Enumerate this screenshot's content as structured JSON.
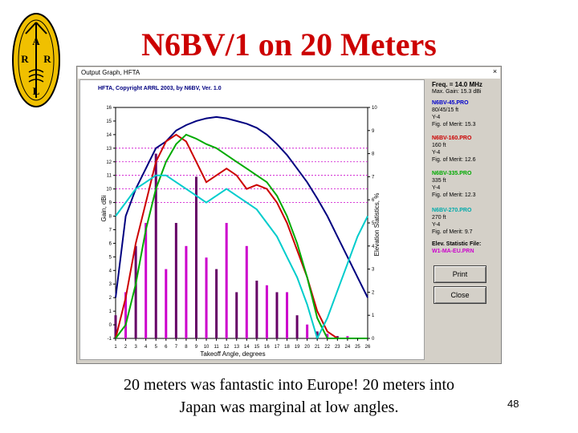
{
  "slide": {
    "title": "N6BV/1 on 20 Meters",
    "caption_line1": "20 meters was fantastic into Europe! 20 meters into",
    "caption_line2": "Japan was marginal at low angles.",
    "number": "48",
    "logo_letters": [
      "A",
      "R",
      "R",
      "L"
    ]
  },
  "window": {
    "title": "Output Graph, HFTA",
    "close_label": "×"
  },
  "chart_data": {
    "type": "line",
    "title": "HFTA, Copyright ARRL 2003, by N6BV, Ver. 1.0",
    "xlabel": "Takeoff Angle, degrees",
    "ylabel": "Gain, dBi",
    "y2label": "Elevation Statistics, %",
    "x": [
      1,
      2,
      3,
      4,
      5,
      6,
      7,
      8,
      9,
      10,
      11,
      12,
      13,
      14,
      15,
      16,
      17,
      18,
      19,
      20,
      21,
      22,
      23,
      24,
      25,
      26
    ],
    "xlim": [
      1,
      26
    ],
    "ylim": [
      -1,
      16
    ],
    "y2lim": [
      0,
      10
    ],
    "grid": "dotted horizontal reference lines",
    "series": [
      {
        "name": "N6BV-45.PRO",
        "color": "#000080",
        "values": [
          2,
          8,
          10,
          11.5,
          13,
          13.5,
          14.3,
          14.7,
          15,
          15.2,
          15.3,
          15.2,
          15,
          14.8,
          14.5,
          14,
          13.3,
          12.5,
          11.5,
          10.5,
          9.3,
          8,
          6.5,
          5,
          3.5,
          2
        ]
      },
      {
        "name": "N6BV-160.PRO",
        "color": "#cc0000",
        "values": [
          -1,
          2,
          6,
          9,
          12,
          13.5,
          14,
          13.5,
          12,
          10.5,
          11,
          11.5,
          11,
          10,
          10.3,
          10,
          9,
          7.5,
          5.5,
          3.5,
          1,
          -0.5,
          -1,
          -1,
          -1,
          -1
        ]
      },
      {
        "name": "N6BV-335.PRO",
        "color": "#00aa00",
        "values": [
          -1,
          0,
          3,
          7,
          10,
          12,
          13.3,
          14,
          13.7,
          13.3,
          13,
          12.5,
          12,
          11.5,
          11,
          10.5,
          9.5,
          8,
          6,
          3.5,
          0.5,
          -1,
          -1,
          -1,
          -1,
          -1
        ]
      },
      {
        "name": "N6BV-270.PRO",
        "color": "#00cccc",
        "values": [
          8,
          9,
          10,
          10.5,
          11,
          11,
          10.5,
          10,
          9.5,
          9,
          9.5,
          10,
          9.5,
          9,
          8.5,
          7.5,
          6.5,
          5,
          3.5,
          1.5,
          -1,
          0.5,
          2.5,
          4.5,
          6.5,
          8
        ]
      }
    ],
    "statistics": {
      "name": "W1-MA-EU.PRN",
      "unit": "%",
      "values": [
        1,
        2,
        4,
        5,
        8,
        3,
        5,
        4,
        7,
        3.5,
        3,
        5,
        2,
        4,
        2.5,
        2.3,
        2,
        2,
        1,
        0.6,
        0.3,
        0.2,
        0.1,
        0.1,
        0,
        0
      ],
      "colors": [
        "#660066",
        "#cc00cc"
      ]
    }
  },
  "side_panel": {
    "freq_label": "Freq. = 14.0 MHz",
    "max_gain_label": "Max. Gain: 15.3 dBi",
    "antennas": [
      {
        "name": "N6BV-45.PRO",
        "color": "#0000cc",
        "lines": [
          "80/45/15 ft",
          "Y-4",
          "Fig. of Merit: 15.3"
        ]
      },
      {
        "name": "N6BV-160.PRO",
        "color": "#cc0000",
        "lines": [
          "160 ft",
          "Y-4",
          "Fig. of Merit: 12.6"
        ]
      },
      {
        "name": "N6BV-335.PRO",
        "color": "#00aa00",
        "lines": [
          "335 ft",
          "Y-4",
          "Fig. of Merit: 12.3"
        ]
      },
      {
        "name": "N6BV-270.PRO",
        "color": "#00aaaa",
        "lines": [
          "270 ft",
          "Y-4",
          "Fig. of Merit: 9.7"
        ]
      }
    ],
    "stat_file_label": "Elev. Statistic File:",
    "stat_file_name": "W1-MA-EU.PRN",
    "print_label": "Print",
    "close_label": "Close"
  }
}
